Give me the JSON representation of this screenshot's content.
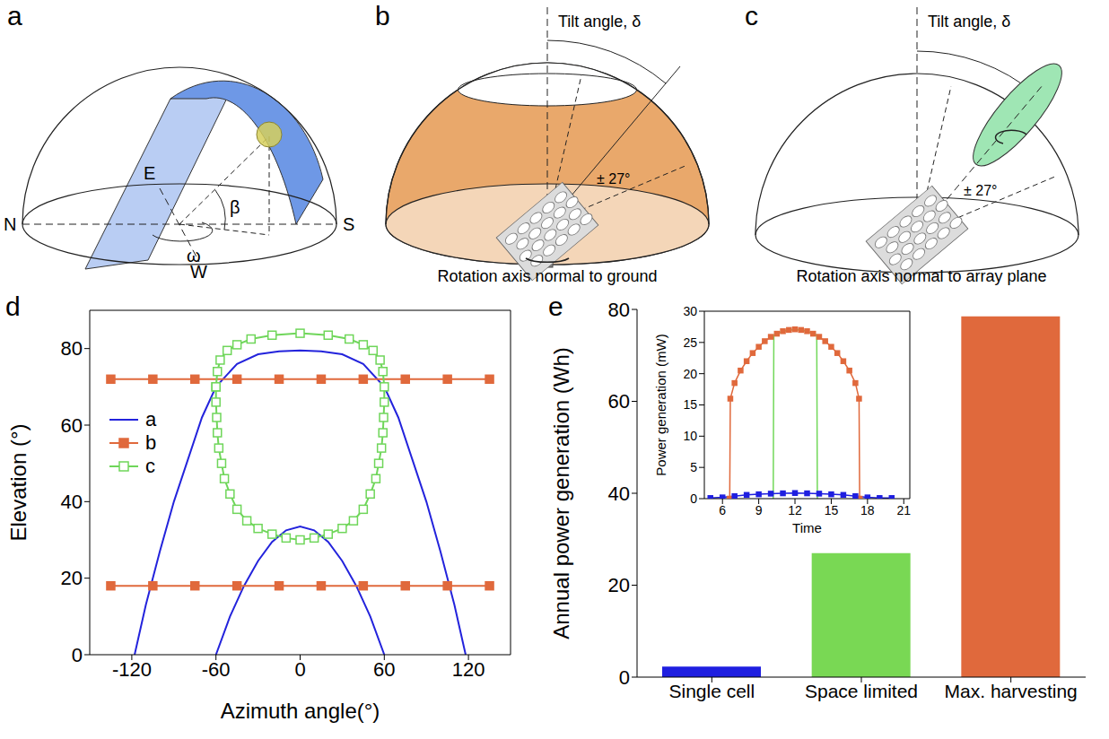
{
  "diagrams": {
    "a": {
      "letter": "a",
      "north": "N",
      "east": "E",
      "south": "S",
      "west": "W",
      "elevation": "β",
      "azimuth": "ω"
    },
    "b": {
      "letter": "b",
      "tilt": "Tilt angle, δ",
      "range": "± 27°",
      "caption": "Rotation axis normal to ground"
    },
    "c": {
      "letter": "c",
      "tilt": "Tilt angle, δ",
      "range": "± 27°",
      "caption": "Rotation axis normal to array plane"
    }
  },
  "chart_data": [
    {
      "panel": "d",
      "type": "line",
      "x_label": "Azimuth angle(°)",
      "y_label": "Elevation (°)",
      "xlim": [
        -150,
        150
      ],
      "xticks": [
        -120,
        -60,
        0,
        60,
        120
      ],
      "ylim": [
        0,
        90
      ],
      "yticks": [
        0,
        20,
        40,
        60,
        80
      ],
      "legend": "upper left",
      "series": [
        {
          "name": "a",
          "color": "#2323dc",
          "marker": "none",
          "x": [
            -118,
            -110,
            -100,
            -90,
            -80,
            -70,
            -60,
            -45,
            -30,
            -15,
            0,
            15,
            30,
            45,
            60,
            70,
            80,
            90,
            100,
            110,
            118,
            -60,
            -60,
            -50,
            -40,
            -30,
            -20,
            -10,
            0,
            10,
            20,
            30,
            40,
            50,
            60
          ],
          "values": [
            0,
            13,
            27,
            40,
            51,
            62,
            70,
            76,
            78.5,
            79.3,
            79.5,
            79.3,
            78.5,
            76,
            70,
            62,
            51,
            40,
            27,
            13,
            0,
            null,
            0,
            10,
            18,
            24.5,
            29.5,
            32.5,
            33.5,
            32.5,
            29.5,
            24.5,
            18,
            10,
            0
          ]
        },
        {
          "name": "b",
          "color": "#e0693c",
          "marker": "square",
          "x": [
            -135,
            -105,
            -75,
            -45,
            -15,
            15,
            45,
            75,
            105,
            135,
            -135,
            -135,
            -105,
            -75,
            -45,
            -15,
            15,
            45,
            75,
            105,
            135
          ],
          "values": [
            72,
            72,
            72,
            72,
            72,
            72,
            72,
            72,
            72,
            72,
            null,
            18,
            18,
            18,
            18,
            18,
            18,
            18,
            18,
            18,
            18
          ]
        },
        {
          "name": "c",
          "color": "#6fd65a",
          "marker": "hollow_square",
          "x": [
            -60,
            -59,
            -57,
            -52,
            -45,
            -35,
            -20,
            0,
            20,
            35,
            45,
            52,
            57,
            59,
            60,
            60,
            59.5,
            59,
            58,
            56,
            54,
            50,
            45,
            38,
            30,
            20,
            10,
            0,
            -10,
            -20,
            -30,
            -38,
            -45,
            -50,
            -54,
            -56,
            -58,
            -59,
            -59.5,
            -60,
            -60
          ],
          "values": [
            70,
            74,
            77,
            79.5,
            81,
            82.5,
            83.5,
            84,
            83.5,
            82.5,
            81,
            79.5,
            77,
            74,
            70,
            66,
            62,
            58,
            54,
            50,
            46,
            42,
            38,
            35,
            33,
            31.5,
            30.5,
            30,
            30.5,
            31.5,
            33,
            35,
            38,
            42,
            46,
            50,
            54,
            58,
            62,
            66,
            70
          ]
        }
      ]
    },
    {
      "panel": "e",
      "type": "bar",
      "y_label": "Annual power generation (Wh)",
      "categories": [
        "Single cell",
        "Space limited",
        "Max. harvesting"
      ],
      "values": [
        2.3,
        27,
        78.5
      ],
      "colors": [
        "#1f1fe0",
        "#79d854",
        "#e0693c"
      ],
      "ylim": [
        0,
        80
      ],
      "yticks": [
        0,
        20,
        40,
        60,
        80
      ]
    },
    {
      "type": "line",
      "x_label": "Time",
      "y_label": "Power generation (mW)",
      "xlim": [
        4.5,
        21.5
      ],
      "xticks": [
        6,
        9,
        12,
        15,
        18,
        21
      ],
      "ylim": [
        0,
        30
      ],
      "yticks": [
        0,
        5,
        10,
        15,
        20,
        25,
        30
      ],
      "series": [
        {
          "color": "#e0693c",
          "marker": "square",
          "x": [
            6.6,
            6.65,
            7,
            7.5,
            8,
            8.5,
            9,
            9.5,
            10,
            10.5,
            11,
            11.5,
            12,
            12.5,
            13,
            13.5,
            14,
            14.5,
            15,
            15.5,
            16,
            16.5,
            17,
            17.3,
            17.35
          ],
          "values": [
            0,
            16,
            18.5,
            20.5,
            22,
            23.3,
            24.3,
            25.2,
            25.9,
            26.4,
            26.8,
            27,
            27.1,
            27,
            26.8,
            26.4,
            25.9,
            25.2,
            24.3,
            23.3,
            22,
            20.5,
            18.5,
            16,
            0
          ]
        },
        {
          "color": "#72d85a",
          "marker": "none",
          "x": [
            10.2,
            10.25,
            10.5,
            11,
            11.5,
            12,
            12.5,
            13,
            13.5,
            13.8,
            13.85
          ],
          "values": [
            0,
            26.2,
            26.4,
            26.8,
            27,
            27.1,
            27,
            26.8,
            26.4,
            26.2,
            0
          ]
        },
        {
          "color": "#1f1fe0",
          "marker": "square",
          "x": [
            5,
            6,
            7,
            8,
            9,
            10,
            11,
            12,
            13,
            14,
            15,
            16,
            17,
            18,
            19,
            20
          ],
          "values": [
            0.1,
            0.2,
            0.4,
            0.6,
            0.7,
            0.8,
            0.85,
            0.9,
            0.85,
            0.8,
            0.7,
            0.6,
            0.4,
            0.2,
            0.1,
            0.1
          ]
        }
      ]
    }
  ]
}
